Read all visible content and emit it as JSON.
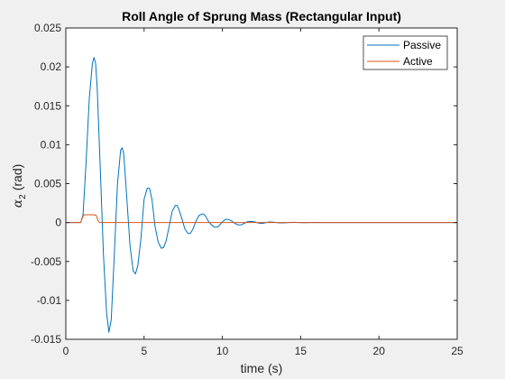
{
  "chart_data": {
    "type": "line",
    "title": "Roll Angle of Sprung Mass (Rectangular Input)",
    "xlabel": "time (s)",
    "ylabel_symbol": "α",
    "ylabel_subscript": "2",
    "ylabel_unit": "(rad)",
    "xlim": [
      0,
      25
    ],
    "ylim": [
      -0.015,
      0.025
    ],
    "x_ticks": [
      0,
      5,
      10,
      15,
      20,
      25
    ],
    "x_tick_labels": [
      "0",
      "5",
      "10",
      "15",
      "20",
      "25"
    ],
    "y_ticks": [
      -0.015,
      -0.01,
      -0.005,
      0,
      0.005,
      0.01,
      0.015,
      0.02,
      0.025
    ],
    "y_tick_labels": [
      "-0.015",
      "-0.01",
      "-0.005",
      "0",
      "0.005",
      "0.01",
      "0.015",
      "0.02",
      "0.025"
    ],
    "grid": false,
    "legend_position": "top-right",
    "series": [
      {
        "name": "Passive",
        "color": "#0072bd",
        "x": [
          0,
          0.95,
          1.1,
          1.3,
          1.5,
          1.7,
          1.8,
          1.9,
          2.0,
          2.2,
          2.4,
          2.6,
          2.75,
          2.9,
          3.1,
          3.3,
          3.5,
          3.6,
          3.7,
          3.9,
          4.1,
          4.3,
          4.45,
          4.6,
          4.8,
          5.0,
          5.2,
          5.35,
          5.5,
          5.7,
          5.9,
          6.1,
          6.25,
          6.4,
          6.6,
          6.8,
          7.0,
          7.1,
          7.2,
          7.4,
          7.6,
          7.8,
          7.95,
          8.1,
          8.3,
          8.5,
          8.7,
          8.8,
          8.9,
          9.1,
          9.3,
          9.5,
          9.65,
          9.8,
          10.0,
          10.2,
          10.4,
          10.6,
          10.8,
          11.0,
          11.2,
          11.4,
          11.6,
          11.8,
          12.0,
          12.2,
          12.4,
          12.6,
          12.8,
          13.0,
          13.3,
          13.6,
          13.9,
          14.2,
          14.5,
          14.8,
          15.1,
          15.4,
          15.8,
          16.2,
          17.0,
          18.0,
          19.0,
          20.0,
          21.0,
          22.0,
          23.0,
          24.0,
          25.0
        ],
        "values": [
          0,
          0,
          0.001,
          0.008,
          0.016,
          0.0205,
          0.0212,
          0.0205,
          0.0175,
          0.007,
          -0.004,
          -0.0115,
          -0.0141,
          -0.0125,
          -0.004,
          0.005,
          0.0093,
          0.0096,
          0.0088,
          0.003,
          -0.003,
          -0.0062,
          -0.0066,
          -0.0055,
          -0.002,
          0.003,
          0.0044,
          0.0044,
          0.003,
          -0.0005,
          -0.0025,
          -0.0033,
          -0.0032,
          -0.0024,
          -0.0005,
          0.0015,
          0.0022,
          0.0022,
          0.0018,
          0.0006,
          -0.0008,
          -0.0014,
          -0.0014,
          -0.0009,
          0.0001,
          0.0009,
          0.0011,
          0.0011,
          0.0009,
          0.0002,
          -0.0003,
          -0.0006,
          -0.0006,
          -0.0004,
          0.0001,
          0.0004,
          0.0004,
          0.0002,
          -0.0001,
          -0.0003,
          -0.0003,
          -0.0001,
          0.0001,
          0.00015,
          0.00012,
          0.0,
          -0.0001,
          -0.0001,
          0.0,
          8e-05,
          5e-05,
          -4e-05,
          -5e-05,
          0.0,
          3e-05,
          2e-05,
          -2e-05,
          -1e-05,
          1e-05,
          0,
          0,
          0,
          0,
          0,
          0,
          0,
          0,
          0,
          0
        ]
      },
      {
        "name": "Active",
        "color": "#d95319",
        "x": [
          0,
          0.95,
          1.05,
          1.15,
          1.3,
          1.8,
          1.95,
          2.05,
          2.15,
          25
        ],
        "values": [
          0,
          0,
          0.0006,
          0.001,
          0.001,
          0.001,
          0.0009,
          0.0003,
          0,
          0
        ]
      }
    ]
  }
}
